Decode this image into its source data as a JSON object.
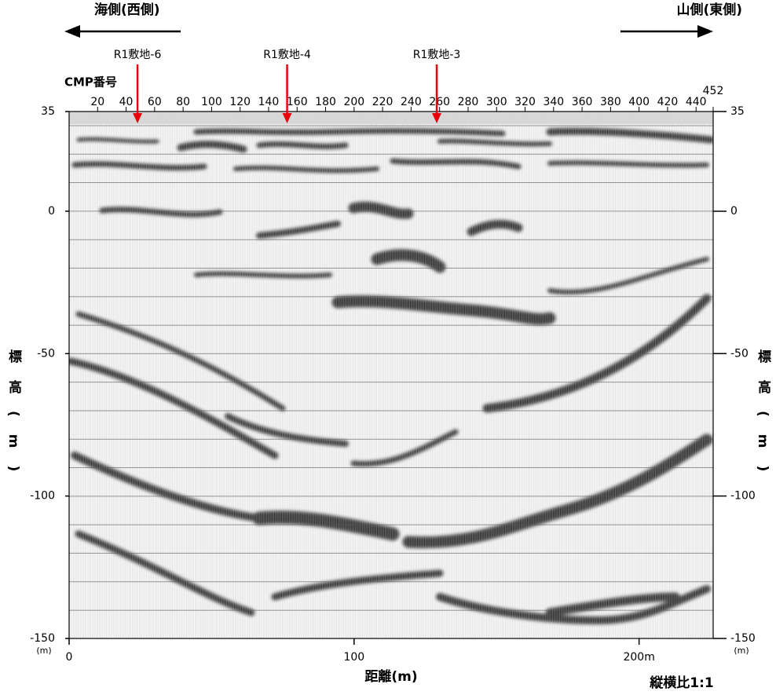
{
  "chart_data": {
    "type": "seismic-section",
    "direction_left": "海側(西側)",
    "direction_right": "山側(東側)",
    "top_axis": {
      "label": "CMP番号",
      "lim": [
        0,
        452
      ],
      "ticks": [
        20,
        40,
        60,
        80,
        100,
        120,
        140,
        160,
        180,
        200,
        220,
        240,
        260,
        280,
        300,
        320,
        340,
        360,
        380,
        400,
        420,
        440,
        452
      ]
    },
    "annotations": [
      {
        "label": "R1敷地-6",
        "cmp": 48
      },
      {
        "label": "R1敷地-4",
        "cmp": 153
      },
      {
        "label": "R1敷地-3",
        "cmp": 258
      }
    ],
    "annotation_color": "#e8000b",
    "xlabel": "距離(m)",
    "xlim": [
      0,
      226
    ],
    "xticks": [
      0,
      100,
      {
        "value": 200,
        "label": "200m"
      }
    ],
    "ylabel": "標高(m)",
    "yunit": "(m)",
    "ylim": [
      -150,
      35
    ],
    "yticks": [
      -150,
      -100,
      -50,
      0,
      35
    ],
    "note": "縦横比1:1"
  }
}
